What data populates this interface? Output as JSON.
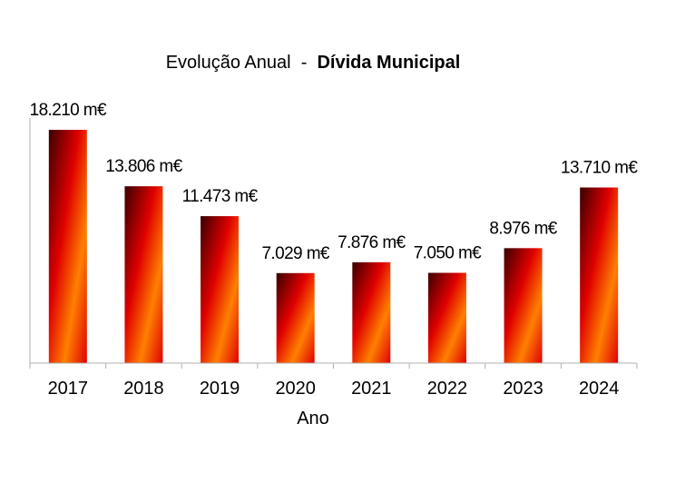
{
  "chart_data": {
    "type": "bar",
    "title_prefix": "Evolução Anual  -  ",
    "title_bold": "Dívida  Municipal",
    "xlabel": "Ano",
    "ylabel": "",
    "categories": [
      "2017",
      "2018",
      "2019",
      "2020",
      "2021",
      "2022",
      "2023",
      "2024"
    ],
    "values": [
      18210,
      13806,
      11473,
      7029,
      7876,
      7050,
      8976,
      13710
    ],
    "data_labels": [
      "18.210 m€",
      "13.806 m€",
      "11.473 m€",
      "7.029 m€",
      "7.876 m€",
      "7.050 m€",
      "8.976 m€",
      "13.710 m€"
    ],
    "ylim": [
      0,
      18210
    ],
    "grid": false,
    "legend": "none",
    "colors": {
      "bar_dark": "#3a0000",
      "bar_red": "#e00000",
      "bar_orange": "#ff8000",
      "axis": "#b0b0b0"
    }
  }
}
